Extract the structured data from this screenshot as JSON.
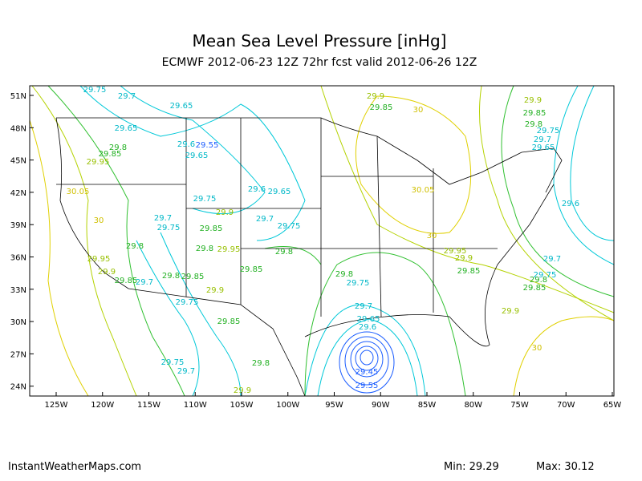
{
  "header": {
    "title": "Mean Sea Level Pressure [inHg]",
    "subtitle": "ECMWF 2012-06-23 12Z 72hr fcst valid 2012-06-26 12Z"
  },
  "map": {
    "lat_labels": [
      "51N",
      "48N",
      "45N",
      "42N",
      "39N",
      "36N",
      "33N",
      "30N",
      "27N",
      "24N"
    ],
    "lon_labels": [
      "125W",
      "120W",
      "115W",
      "110W",
      "105W",
      "100W",
      "95W",
      "90W",
      "85W",
      "80W",
      "75W",
      "70W",
      "65W"
    ],
    "contour_labels": [
      "29.75",
      "29.7",
      "29.65",
      "29.65",
      "29.8",
      "29.85",
      "29.95",
      "29.6",
      "29.55",
      "29.65",
      "30.05",
      "30",
      "29.75",
      "29.6",
      "29.65",
      "29.7",
      "29.75",
      "29.9",
      "29.85",
      "29.7",
      "29.75",
      "29.8",
      "29.8",
      "29.95",
      "29.8",
      "29.95",
      "29.9",
      "29.85",
      "29.7",
      "29.8",
      "29.85",
      "29.85",
      "29.9",
      "29.75",
      "29.85",
      "29.75",
      "29.7",
      "29.8",
      "29.9",
      "29.8",
      "29.75",
      "29.7",
      "29.65",
      "29.6",
      "29.45",
      "29.55",
      "29.9",
      "29.85",
      "30",
      "30.05",
      "30",
      "29.95",
      "29.9",
      "29.85",
      "29.9",
      "29.85",
      "29.8",
      "29.75",
      "29.7",
      "29.65",
      "29.6",
      "29.7",
      "29.75",
      "29.8",
      "29.85",
      "29.9",
      "30"
    ]
  },
  "footer": {
    "source": "InstantWeatherMaps.com",
    "min": "Min:  29.29",
    "max": "Max:  30.12"
  }
}
